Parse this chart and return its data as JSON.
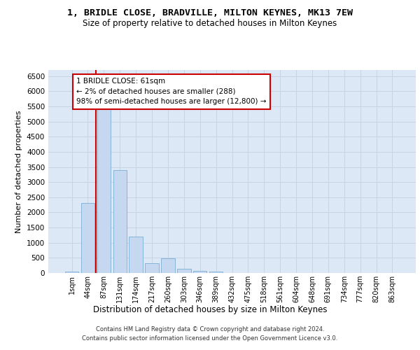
{
  "title1": "1, BRIDLE CLOSE, BRADVILLE, MILTON KEYNES, MK13 7EW",
  "title2": "Size of property relative to detached houses in Milton Keynes",
  "xlabel": "Distribution of detached houses by size in Milton Keynes",
  "ylabel": "Number of detached properties",
  "footer1": "Contains HM Land Registry data © Crown copyright and database right 2024.",
  "footer2": "Contains public sector information licensed under the Open Government Licence v3.0.",
  "annotation_line1": "1 BRIDLE CLOSE: 61sqm",
  "annotation_line2": "← 2% of detached houses are smaller (288)",
  "annotation_line3": "98% of semi-detached houses are larger (12,800) →",
  "bar_labels": [
    "1sqm",
    "44sqm",
    "87sqm",
    "131sqm",
    "174sqm",
    "217sqm",
    "260sqm",
    "303sqm",
    "346sqm",
    "389sqm",
    "432sqm",
    "475sqm",
    "518sqm",
    "561sqm",
    "604sqm",
    "648sqm",
    "691sqm",
    "734sqm",
    "777sqm",
    "820sqm",
    "863sqm"
  ],
  "bar_values": [
    50,
    2300,
    5450,
    3400,
    1200,
    330,
    480,
    150,
    80,
    50,
    0,
    0,
    0,
    0,
    0,
    0,
    0,
    0,
    0,
    0,
    0
  ],
  "bar_color": "#c5d8ef",
  "bar_edge_color": "#7aafd4",
  "vline_color": "#cc0000",
  "vline_x_index": 1.5,
  "ylim": [
    0,
    6700
  ],
  "yticks": [
    0,
    500,
    1000,
    1500,
    2000,
    2500,
    3000,
    3500,
    4000,
    4500,
    5000,
    5500,
    6000,
    6500
  ],
  "grid_color": "#c8d4e4",
  "background_color": "#dce8f5",
  "title1_fontsize": 9.5,
  "title2_fontsize": 8.5,
  "xlabel_fontsize": 8.5,
  "ylabel_fontsize": 8,
  "tick_fontsize": 7,
  "ytick_fontsize": 7.5,
  "footer_fontsize": 6
}
